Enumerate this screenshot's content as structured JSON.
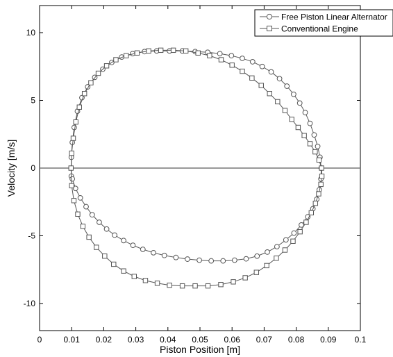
{
  "chart_data": {
    "type": "line",
    "title": "",
    "xlabel": "Piston Position [m]",
    "ylabel": "Velocity [m/s]",
    "xlim": [
      0,
      0.1
    ],
    "ylim": [
      -12,
      12
    ],
    "xticks": [
      0,
      0.01,
      0.02,
      0.03,
      0.04,
      0.05,
      0.06,
      0.07,
      0.08,
      0.09,
      0.1
    ],
    "xtick_labels": [
      "0",
      "0.01",
      "0.02",
      "0.03",
      "0.04",
      "0.05",
      "0.06",
      "0.07",
      "0.08",
      "0.09",
      "0.1"
    ],
    "yticks": [
      -10,
      -5,
      0,
      5,
      10
    ],
    "ytick_labels": [
      "-10",
      "-5",
      "0",
      "5",
      "10"
    ],
    "grid": false,
    "reference_line_y": 0,
    "legend_position": "top-right",
    "colors": {
      "line": "#555555",
      "marker_fill": "#ffffff",
      "reference": "#777777"
    },
    "series": [
      {
        "name": "Free Piston Linear Alternator",
        "marker": "circle",
        "points": [
          [
            0.0099,
            -0.6
          ],
          [
            0.0099,
            0.8
          ],
          [
            0.0102,
            1.9
          ],
          [
            0.0108,
            3.0
          ],
          [
            0.0118,
            4.2
          ],
          [
            0.0132,
            5.2
          ],
          [
            0.015,
            6.0
          ],
          [
            0.0172,
            6.7
          ],
          [
            0.0197,
            7.3
          ],
          [
            0.0225,
            7.8
          ],
          [
            0.0256,
            8.2
          ],
          [
            0.029,
            8.45
          ],
          [
            0.0327,
            8.6
          ],
          [
            0.0365,
            8.65
          ],
          [
            0.0405,
            8.65
          ],
          [
            0.0445,
            8.65
          ],
          [
            0.0485,
            8.6
          ],
          [
            0.0524,
            8.55
          ],
          [
            0.0562,
            8.45
          ],
          [
            0.0598,
            8.3
          ],
          [
            0.0632,
            8.1
          ],
          [
            0.0664,
            7.85
          ],
          [
            0.0694,
            7.5
          ],
          [
            0.0722,
            7.1
          ],
          [
            0.0748,
            6.6
          ],
          [
            0.0771,
            6.05
          ],
          [
            0.0792,
            5.45
          ],
          [
            0.0811,
            4.8
          ],
          [
            0.0828,
            4.1
          ],
          [
            0.0843,
            3.3
          ],
          [
            0.0856,
            2.45
          ],
          [
            0.0867,
            1.6
          ],
          [
            0.0874,
            0.8
          ],
          [
            0.0878,
            0.0
          ],
          [
            0.0877,
            -0.8
          ],
          [
            0.0872,
            -1.6
          ],
          [
            0.0864,
            -2.3
          ],
          [
            0.0852,
            -3.0
          ],
          [
            0.0836,
            -3.6
          ],
          [
            0.0816,
            -4.2
          ],
          [
            0.0793,
            -4.8
          ],
          [
            0.0768,
            -5.3
          ],
          [
            0.074,
            -5.8
          ],
          [
            0.071,
            -6.2
          ],
          [
            0.0678,
            -6.5
          ],
          [
            0.0644,
            -6.7
          ],
          [
            0.0608,
            -6.8
          ],
          [
            0.0572,
            -6.85
          ],
          [
            0.0535,
            -6.85
          ],
          [
            0.0498,
            -6.8
          ],
          [
            0.0461,
            -6.72
          ],
          [
            0.0425,
            -6.6
          ],
          [
            0.0389,
            -6.45
          ],
          [
            0.0355,
            -6.25
          ],
          [
            0.0322,
            -6.0
          ],
          [
            0.0291,
            -5.7
          ],
          [
            0.0262,
            -5.35
          ],
          [
            0.0234,
            -4.95
          ],
          [
            0.0209,
            -4.5
          ],
          [
            0.0186,
            -4.0
          ],
          [
            0.0164,
            -3.45
          ],
          [
            0.0145,
            -2.85
          ],
          [
            0.0127,
            -2.2
          ],
          [
            0.0112,
            -1.5
          ],
          [
            0.0102,
            -0.8
          ]
        ]
      },
      {
        "name": "Conventional Engine",
        "marker": "square",
        "points": [
          [
            0.0098,
            0.0
          ],
          [
            0.01,
            1.1
          ],
          [
            0.0105,
            2.2
          ],
          [
            0.0113,
            3.4
          ],
          [
            0.0124,
            4.5
          ],
          [
            0.014,
            5.5
          ],
          [
            0.016,
            6.3
          ],
          [
            0.0183,
            7.0
          ],
          [
            0.0209,
            7.55
          ],
          [
            0.0238,
            8.0
          ],
          [
            0.027,
            8.3
          ],
          [
            0.0304,
            8.5
          ],
          [
            0.034,
            8.65
          ],
          [
            0.0378,
            8.7
          ],
          [
            0.0417,
            8.7
          ],
          [
            0.0456,
            8.65
          ],
          [
            0.0494,
            8.5
          ],
          [
            0.053,
            8.3
          ],
          [
            0.0566,
            8.0
          ],
          [
            0.06,
            7.6
          ],
          [
            0.0632,
            7.15
          ],
          [
            0.0662,
            6.65
          ],
          [
            0.0691,
            6.1
          ],
          [
            0.0717,
            5.5
          ],
          [
            0.0742,
            4.9
          ],
          [
            0.0765,
            4.25
          ],
          [
            0.0786,
            3.6
          ],
          [
            0.0806,
            3.0
          ],
          [
            0.0825,
            2.4
          ],
          [
            0.0843,
            1.8
          ],
          [
            0.0859,
            1.2
          ],
          [
            0.0871,
            0.6
          ],
          [
            0.0879,
            0.0
          ],
          [
            0.088,
            -0.6
          ],
          [
            0.0877,
            -1.2
          ],
          [
            0.087,
            -1.9
          ],
          [
            0.086,
            -2.6
          ],
          [
            0.0847,
            -3.3
          ],
          [
            0.0831,
            -4.0
          ],
          [
            0.0812,
            -4.7
          ],
          [
            0.079,
            -5.4
          ],
          [
            0.0765,
            -6.05
          ],
          [
            0.0738,
            -6.65
          ],
          [
            0.0708,
            -7.2
          ],
          [
            0.0676,
            -7.7
          ],
          [
            0.0641,
            -8.1
          ],
          [
            0.0604,
            -8.4
          ],
          [
            0.0565,
            -8.6
          ],
          [
            0.0525,
            -8.7
          ],
          [
            0.0485,
            -8.7
          ],
          [
            0.0445,
            -8.7
          ],
          [
            0.0405,
            -8.65
          ],
          [
            0.0367,
            -8.5
          ],
          [
            0.033,
            -8.3
          ],
          [
            0.0295,
            -8.0
          ],
          [
            0.0262,
            -7.6
          ],
          [
            0.0231,
            -7.1
          ],
          [
            0.0203,
            -6.5
          ],
          [
            0.0177,
            -5.85
          ],
          [
            0.0154,
            -5.1
          ],
          [
            0.0135,
            -4.3
          ],
          [
            0.0119,
            -3.4
          ],
          [
            0.0107,
            -2.4
          ],
          [
            0.01,
            -1.3
          ]
        ]
      }
    ]
  }
}
